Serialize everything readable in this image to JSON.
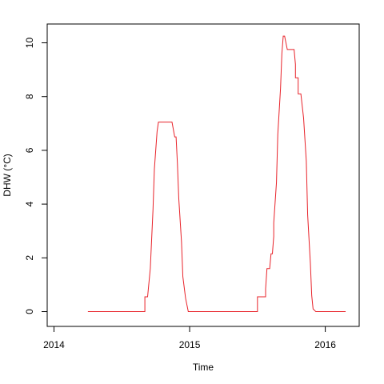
{
  "chart_data": {
    "type": "line",
    "title": "",
    "xlabel": "Time",
    "ylabel": "DHW (°C)",
    "xlim": [
      2013.95,
      2016.25
    ],
    "ylim": [
      -0.55,
      10.7
    ],
    "x_ticks": [
      2014,
      2015,
      2016
    ],
    "x_tick_labels": [
      "2014",
      "2015",
      "2016"
    ],
    "y_ticks": [
      0,
      2,
      4,
      6,
      8,
      10
    ],
    "y_tick_labels": [
      "0",
      "2",
      "4",
      "6",
      "8",
      "10"
    ],
    "grid": false,
    "legend": "none",
    "series": [
      {
        "color": "#e8232a",
        "x": [
          2014.25,
          2014.67,
          2014.67,
          2014.69,
          2014.71,
          2014.73,
          2014.74,
          2014.76,
          2014.77,
          2014.79,
          2014.8,
          2014.82,
          2014.83,
          2014.84,
          2014.85,
          2014.87,
          2014.89,
          2014.9,
          2014.91,
          2014.92,
          2014.94,
          2014.95,
          2014.97,
          2014.99,
          2015.5,
          2015.5,
          2015.53,
          2015.56,
          2015.56,
          2015.57,
          2015.59,
          2015.6,
          2015.6,
          2015.61,
          2015.62,
          2015.62,
          2015.64,
          2015.65,
          2015.67,
          2015.68,
          2015.69,
          2015.7,
          2015.7,
          2015.72,
          2015.73,
          2015.74,
          2015.74,
          2015.77,
          2015.78,
          2015.78,
          2015.8,
          2015.8,
          2015.8,
          2015.82,
          2015.82,
          2015.84,
          2015.86,
          2015.87,
          2015.89,
          2015.9,
          2015.91,
          2015.93,
          2015.95,
          2016.15
        ],
        "values": [
          0,
          0,
          0.55,
          0.55,
          1.6,
          3.8,
          5.3,
          6.7,
          7.05,
          7.05,
          7.05,
          7.05,
          7.05,
          7.05,
          7.05,
          7.05,
          6.5,
          6.5,
          5.5,
          4.2,
          2.6,
          1.3,
          0.5,
          0,
          0,
          0.55,
          0.55,
          0.55,
          0.85,
          1.6,
          1.6,
          2.15,
          2.15,
          2.15,
          2.8,
          3.3,
          4.8,
          6.6,
          8.3,
          9.6,
          10.25,
          10.25,
          10.25,
          9.75,
          9.75,
          9.75,
          9.75,
          9.75,
          9.2,
          8.7,
          8.7,
          8.1,
          8.1,
          8.1,
          8.1,
          7.2,
          5.6,
          3.6,
          1.8,
          0.6,
          0.1,
          0,
          0,
          0
        ]
      }
    ]
  }
}
